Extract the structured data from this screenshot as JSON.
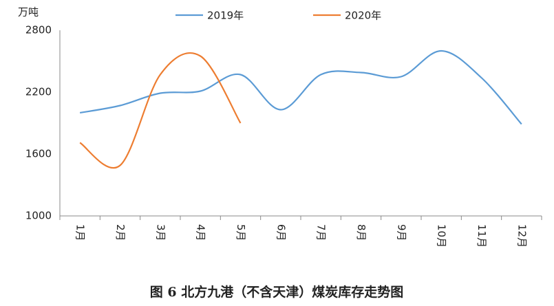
{
  "chart_data": {
    "type": "line",
    "title": "图 6 北方九港（不含天津）煤炭库存走势图",
    "y_axis_label": "万吨",
    "categories": [
      "1月",
      "2月",
      "3月",
      "4月",
      "5月",
      "6月",
      "7月",
      "8月",
      "9月",
      "10月",
      "11月",
      "12月"
    ],
    "series": [
      {
        "name": "2019年",
        "color": "#5b9bd5",
        "values": [
          2000,
          2070,
          2190,
          2210,
          2370,
          2030,
          2370,
          2390,
          2350,
          2600,
          2340,
          1890
        ]
      },
      {
        "name": "2020年",
        "color": "#ed7d31",
        "values": [
          1710,
          1490,
          2370,
          2550,
          1900,
          null,
          null,
          null,
          null,
          null,
          null,
          null
        ]
      }
    ],
    "ylim": [
      1000,
      2800
    ],
    "yticks": [
      1000,
      1600,
      2200,
      2800
    ],
    "grid": false
  }
}
